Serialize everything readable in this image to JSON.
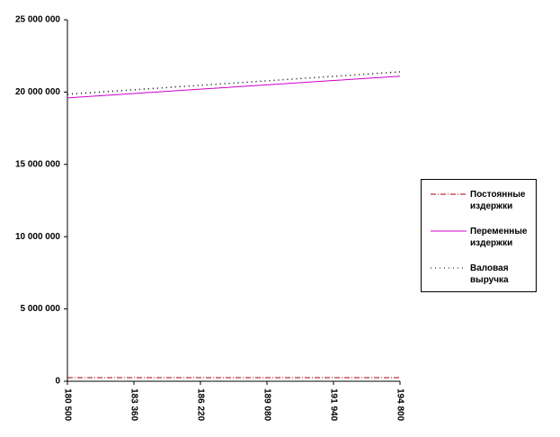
{
  "chart_data": {
    "type": "line",
    "x": [
      180500,
      183360,
      186220,
      189080,
      191940,
      194800
    ],
    "series": [
      {
        "name": "Постоянные издержки",
        "color": "#a00000",
        "dash": "6 2 1 2",
        "values": [
          250000,
          250000,
          250000,
          250000,
          250000,
          250000
        ]
      },
      {
        "name": "Переменные издержки",
        "color": "#cc00cc",
        "dash": "none",
        "values": [
          19600000,
          19900000,
          20200000,
          20500000,
          20800000,
          21100000
        ]
      },
      {
        "name": "Валовая выручка",
        "color": "#000000",
        "dash": "1 4",
        "values": [
          19850000,
          20160000,
          20470000,
          20780000,
          21090000,
          21400000
        ]
      }
    ],
    "xlim": [
      180500,
      194800
    ],
    "xticks": [
      {
        "value": 180500,
        "label": "180 500"
      },
      {
        "value": 183360,
        "label": "183 360"
      },
      {
        "value": 186220,
        "label": "186 220"
      },
      {
        "value": 189080,
        "label": "189 080"
      },
      {
        "value": 191940,
        "label": "191 940"
      },
      {
        "value": 194800,
        "label": "194 800"
      }
    ],
    "ylim": [
      0,
      25000000
    ],
    "yticks": [
      0,
      {
        "value": 5000000,
        "label": "5 000 000"
      },
      {
        "value": 10000000,
        "label": "10 000 000"
      },
      {
        "value": 15000000,
        "label": "15 000 000"
      },
      {
        "value": 20000000,
        "label": "20 000 000"
      },
      {
        "value": 25000000,
        "label": "25 000 000"
      }
    ],
    "grid": false
  }
}
